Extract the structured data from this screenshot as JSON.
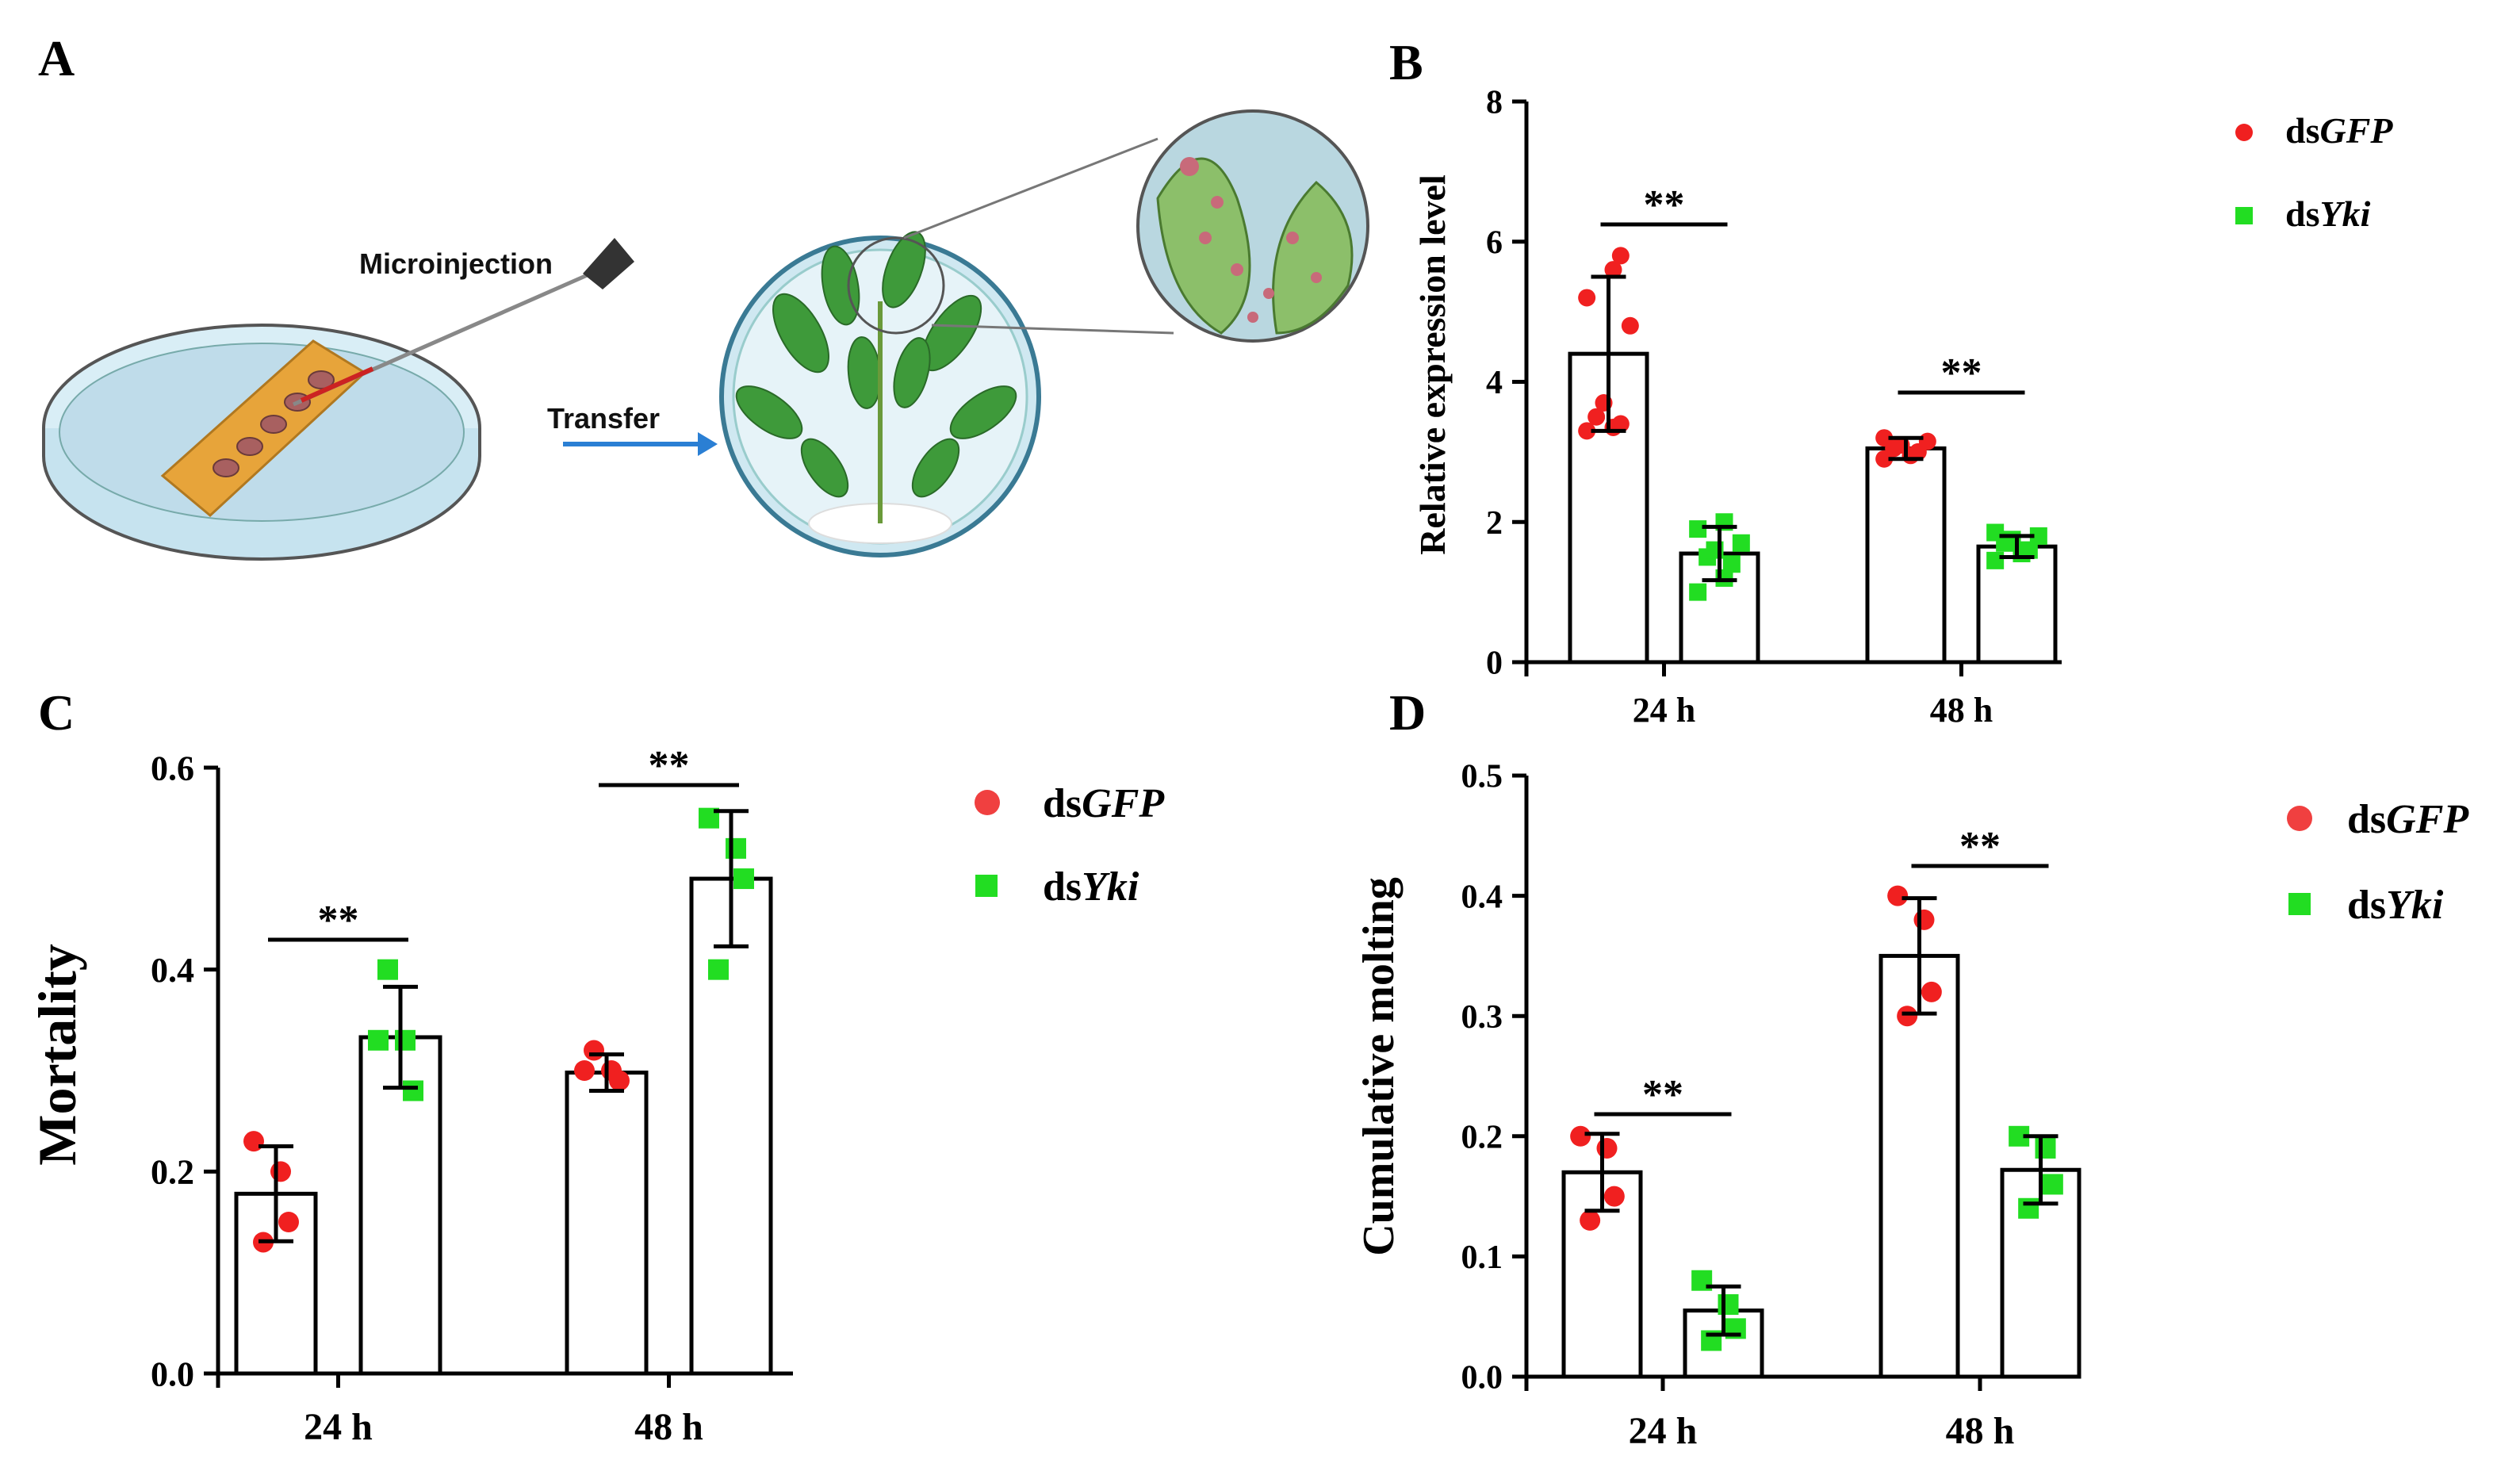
{
  "panels": {
    "a": "A",
    "b": "B",
    "c": "C",
    "d": "D"
  },
  "illustration": {
    "microinjection": "Microinjection",
    "transfer": "Transfer"
  },
  "colors": {
    "gfp": "#f02020",
    "yki": "#22dd22",
    "arrow": "#2a7fd4",
    "dish": "#bfe1ee",
    "leaf": "#3e9a3a",
    "tape": "#e7a43a"
  },
  "legend": {
    "ds": "ds",
    "gfp_italic": "GFP",
    "yki_italic": "Yki"
  },
  "chart_data": [
    {
      "id": "B",
      "type": "bar",
      "categories": [
        "24 h",
        "48 h"
      ],
      "ylabel": "Relative expression level",
      "xlabel": "",
      "ylim": [
        0,
        8
      ],
      "yticks": [
        "0",
        "2",
        "4",
        "6",
        "8"
      ],
      "series": [
        {
          "name": "dsGFP",
          "values": [
            4.4,
            3.05
          ],
          "errors": [
            1.1,
            0.15
          ],
          "points": [
            [
              3.3,
              3.35,
              3.4,
              3.5,
              3.7,
              4.8,
              5.2,
              5.6,
              5.8
            ],
            [
              2.9,
              2.95,
              3.0,
              3.05,
              3.1,
              3.15,
              3.2
            ]
          ]
        },
        {
          "name": "dsYki",
          "values": [
            1.55,
            1.65
          ],
          "errors": [
            0.38,
            0.15
          ],
          "points": [
            [
              1.0,
              1.2,
              1.4,
              1.5,
              1.6,
              1.7,
              1.9,
              2.0
            ],
            [
              1.45,
              1.55,
              1.6,
              1.7,
              1.75,
              1.8,
              1.85
            ]
          ]
        }
      ],
      "significance": [
        "**",
        "**"
      ]
    },
    {
      "id": "C",
      "type": "bar",
      "categories": [
        "24 h",
        "48 h"
      ],
      "ylabel": "Mortality",
      "xlabel": "",
      "ylim": [
        0,
        0.6
      ],
      "yticks": [
        "0.0",
        "0.2",
        "0.4",
        "0.6"
      ],
      "series": [
        {
          "name": "dsGFP",
          "values": [
            0.178,
            0.298
          ],
          "errors": [
            0.047,
            0.018
          ],
          "points": [
            [
              0.23,
              0.2,
              0.15,
              0.13
            ],
            [
              0.3,
              0.3,
              0.29,
              0.32
            ]
          ]
        },
        {
          "name": "dsYki",
          "values": [
            0.333,
            0.49
          ],
          "errors": [
            0.05,
            0.067
          ],
          "points": [
            [
              0.33,
              0.33,
              0.28,
              0.4
            ],
            [
              0.55,
              0.52,
              0.49,
              0.4
            ]
          ]
        }
      ],
      "significance": [
        "**",
        "**"
      ]
    },
    {
      "id": "D",
      "type": "bar",
      "categories": [
        "24 h",
        "48 h"
      ],
      "ylabel": "Cumulative molting",
      "xlabel": "",
      "ylim": [
        0,
        0.5
      ],
      "yticks": [
        "0.0",
        "0.1",
        "0.2",
        "0.3",
        "0.4",
        "0.5"
      ],
      "series": [
        {
          "name": "dsGFP",
          "values": [
            0.17,
            0.35
          ],
          "errors": [
            0.032,
            0.048
          ],
          "points": [
            [
              0.2,
              0.19,
              0.15,
              0.13
            ],
            [
              0.4,
              0.38,
              0.32,
              0.3
            ]
          ]
        },
        {
          "name": "dsYki",
          "values": [
            0.055,
            0.172
          ],
          "errors": [
            0.02,
            0.028
          ],
          "points": [
            [
              0.08,
              0.06,
              0.04,
              0.03
            ],
            [
              0.2,
              0.19,
              0.16,
              0.14
            ]
          ]
        }
      ],
      "significance": [
        "**",
        "**"
      ]
    }
  ]
}
